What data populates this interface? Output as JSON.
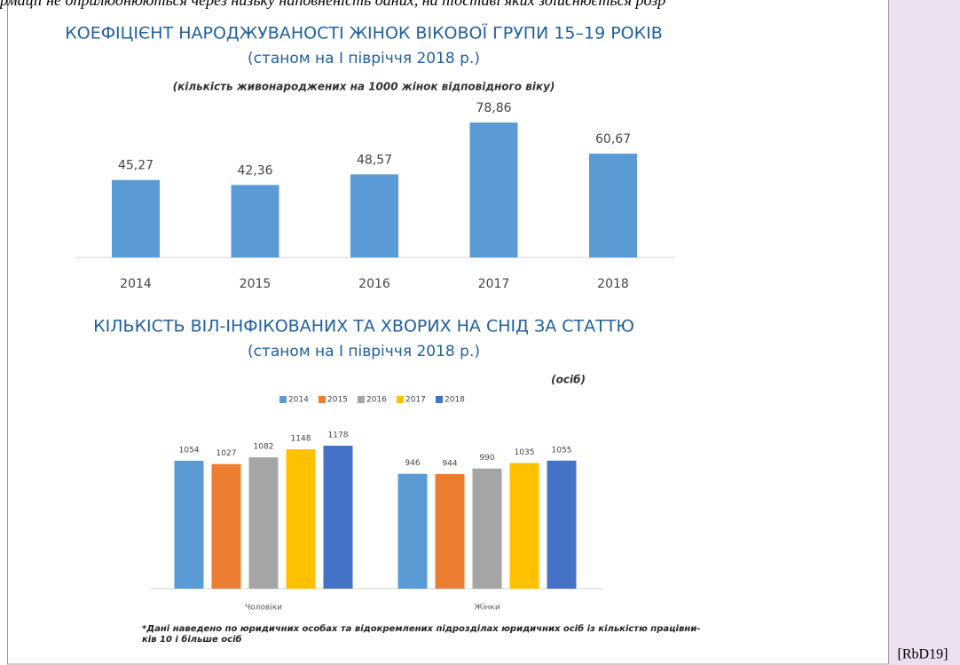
{
  "header_text": "рмації не оприлюднюються через низьку наповненість даних, на підставі яких здійснюється розр",
  "chart_data": [
    {
      "type": "bar",
      "title": "КОЕФІЦІЄНТ НАРОДЖУВАНОСТІ ЖІНОК ВІКОВОЇ ГРУПИ 15–19 РОКІВ",
      "subtitle": "(станом на І півріччя 2018 р.)",
      "note": "(кількість живонароджених на 1000 жінок відповідного віку)",
      "categories": [
        "2014",
        "2015",
        "2016",
        "2017",
        "2018"
      ],
      "values": [
        45.27,
        42.36,
        48.57,
        78.86,
        60.67
      ],
      "value_labels": [
        "45,27",
        "42,36",
        "48,57",
        "78,86",
        "60,67"
      ],
      "color": "#5b9bd5"
    },
    {
      "type": "grouped_bar",
      "title": "КІЛЬКІСТЬ ВІЛ-ІНФІКОВАНИХ ТА ХВОРИХ НА СНІД ЗА СТАТТЮ",
      "subtitle": "(станом на І півріччя 2018 р.)",
      "note": "(осіб)",
      "categories": [
        "Чоловіки",
        "Жінки"
      ],
      "series": [
        {
          "name": "2014",
          "color": "#5b9bd5",
          "values": [
            1054,
            946
          ]
        },
        {
          "name": "2015",
          "color": "#ed7d31",
          "values": [
            1027,
            944
          ]
        },
        {
          "name": "2016",
          "color": "#a5a5a5",
          "values": [
            1082,
            990
          ]
        },
        {
          "name": "2017",
          "color": "#ffc000",
          "values": [
            1148,
            1035
          ]
        },
        {
          "name": "2018",
          "color": "#4472c4",
          "values": [
            1178,
            1055
          ]
        }
      ],
      "legend": "top"
    }
  ],
  "footnote": [
    "*Дані наведено по юридичних особах та відокремлених підрозділах юридичних осіб із кількістю працівни-",
    "ків 10 і більше осіб"
  ],
  "comment_ref": "[RbD19]"
}
